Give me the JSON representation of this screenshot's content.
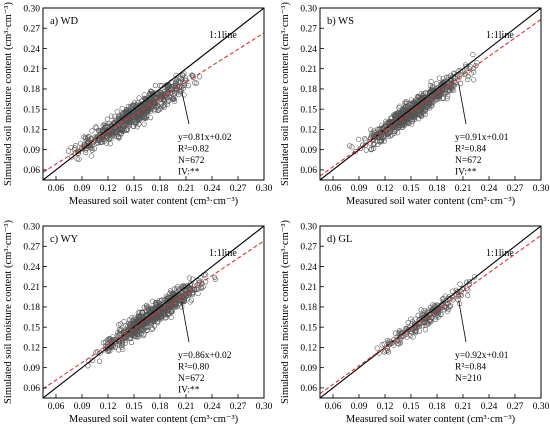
{
  "figure": {
    "xlabel": "Measured soil water content (cm³·cm⁻³)",
    "ylabel": "Simulated soil moisture content (cm³·cm⁻³)",
    "one_to_one_label": "1:1line",
    "ticks": [
      "0.06",
      "0.09",
      "0.12",
      "0.15",
      "0.18",
      "0.21",
      "0.24",
      "0.27",
      "0.30"
    ],
    "colors": {
      "points": "#555555",
      "fit_line": "#e03030",
      "ref_line": "#000000"
    }
  },
  "chart_data": [
    {
      "type": "scatter",
      "panel_label": "a) WD",
      "xlim": [
        0.045,
        0.3
      ],
      "ylim": [
        0.045,
        0.3
      ],
      "fit": {
        "slope": 0.81,
        "intercept": 0.02
      },
      "stats": [
        "y=0.81x+0.02",
        "R²=0.82",
        "N=672",
        "IV:**"
      ],
      "n": 672,
      "x_range": [
        0.06,
        0.24
      ],
      "spread": 0.016,
      "seed": 11
    },
    {
      "type": "scatter",
      "panel_label": "b) WS",
      "xlim": [
        0.045,
        0.3
      ],
      "ylim": [
        0.045,
        0.3
      ],
      "fit": {
        "slope": 0.91,
        "intercept": 0.01
      },
      "stats": [
        "y=0.91x+0.01",
        "R²=0.84",
        "N=672",
        "IV:**"
      ],
      "n": 672,
      "x_range": [
        0.07,
        0.24
      ],
      "spread": 0.015,
      "seed": 23
    },
    {
      "type": "scatter",
      "panel_label": "c) WY",
      "xlim": [
        0.045,
        0.3
      ],
      "ylim": [
        0.045,
        0.3
      ],
      "fit": {
        "slope": 0.86,
        "intercept": 0.02
      },
      "stats": [
        "y=0.86x+0.02",
        "R²=0.80",
        "N=672",
        "IV:**"
      ],
      "n": 672,
      "x_range": [
        0.09,
        0.255
      ],
      "spread": 0.016,
      "seed": 37
    },
    {
      "type": "scatter",
      "panel_label": "d) GL",
      "xlim": [
        0.045,
        0.3
      ],
      "ylim": [
        0.045,
        0.3
      ],
      "fit": {
        "slope": 0.92,
        "intercept": 0.01
      },
      "stats": [
        "y=0.92x+0.01",
        "R²=0.84",
        "N=210"
      ],
      "n": 210,
      "x_range": [
        0.09,
        0.245
      ],
      "spread": 0.013,
      "seed": 53
    }
  ]
}
